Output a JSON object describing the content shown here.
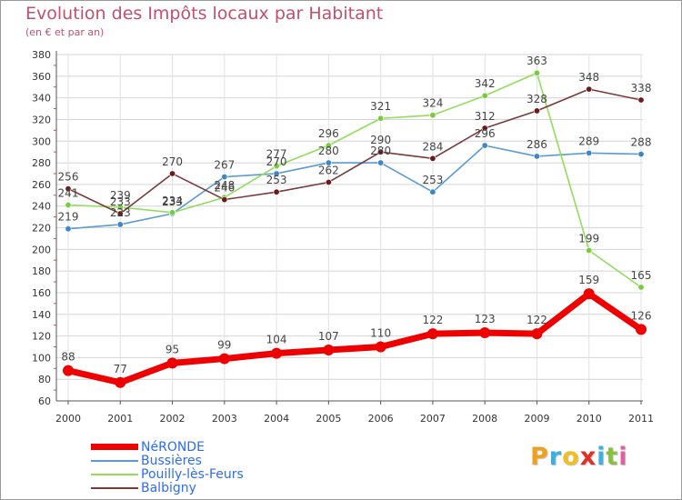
{
  "title": "Evolution des Impôts locaux par Habitant",
  "subtitle": "(en € et par an)",
  "logo_text": "Proxiti",
  "logo_colors": [
    "#f0a020",
    "#38b0e0",
    "#f0c020",
    "#e0302a",
    "#40b0e0",
    "#88c040",
    "#e060a0"
  ],
  "chart_data": {
    "type": "line",
    "title": "Evolution des Impôts locaux par Habitant",
    "subtitle": "(en € et par an)",
    "xlabel": "",
    "ylabel": "",
    "x": [
      "2000",
      "2001",
      "2002",
      "2003",
      "2004",
      "2005",
      "2006",
      "2007",
      "2008",
      "2009",
      "2010",
      "2011"
    ],
    "ylim": [
      60,
      380
    ],
    "yticks": [
      60,
      80,
      100,
      120,
      140,
      160,
      180,
      200,
      220,
      240,
      260,
      280,
      300,
      320,
      340,
      360,
      380
    ],
    "grid": true,
    "legend_position": "bottom-left",
    "series": [
      {
        "name": "Bussières",
        "color": "#5a9bd0",
        "point_color": "#3f86c6",
        "values": [
          219,
          223,
          233,
          267,
          270,
          280,
          280,
          253,
          296,
          286,
          289,
          288
        ]
      },
      {
        "name": "Pouilly-lès-Feurs",
        "color": "#93dc5c",
        "point_color": "#77cc3c",
        "values": [
          241,
          239,
          234,
          248,
          277,
          296,
          321,
          324,
          342,
          363,
          199,
          165
        ]
      },
      {
        "name": "Balbigny",
        "color": "#7a3a3a",
        "point_color": "#6a1a1a",
        "values": [
          256,
          233,
          270,
          246,
          253,
          262,
          290,
          284,
          312,
          328,
          348,
          338
        ]
      },
      {
        "name": "NéRONDE",
        "color": "#ee0000",
        "point_color": "#ee0000",
        "values": [
          88,
          77,
          95,
          99,
          104,
          107,
          110,
          122,
          123,
          122,
          159,
          126
        ]
      }
    ],
    "legend_order": [
      "NéRONDE",
      "Bussières",
      "Pouilly-lès-Feurs",
      "Balbigny"
    ]
  }
}
